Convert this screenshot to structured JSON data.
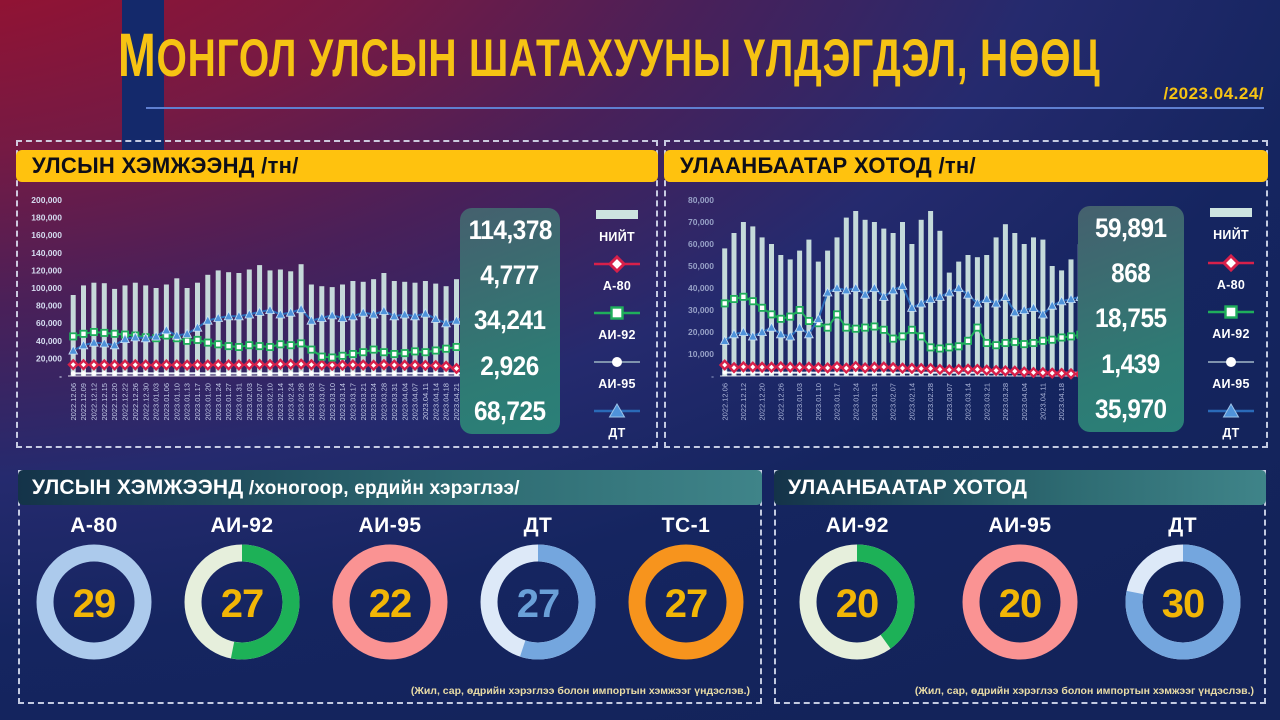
{
  "header": {
    "title": "МОНГОЛ УЛСЫН ШАТАХУУНЫ ҮЛДЭГДЭЛ, НӨӨЦ",
    "date": "/2023.04.24/"
  },
  "colors": {
    "gold": "#f6c313",
    "header_yellow": "#ffc20e",
    "navy": "#14296b",
    "bar_mint": "#cde4e0",
    "red": "#d7204a",
    "green": "#1fae5b",
    "pale": "#e9eef8",
    "blue": "#2a6ab8",
    "blue_marker": "#4f93da",
    "salmon": "#fa9393",
    "orange": "#f7941d",
    "light_blue_ring": "#accaec",
    "pale_mint": "#e6efdc",
    "pale_blue": "#dde9f8",
    "mid_blue": "#74a6de"
  },
  "legend_labels": [
    "НИЙТ",
    "А-80",
    "АИ-92",
    "АИ-95",
    "ДТ"
  ],
  "chart_data": [
    {
      "type": "bar",
      "title": "УЛСЫН ХЭМЖЭЭНД /тн/",
      "ylim": [
        0,
        200000
      ],
      "label_every": 1,
      "yticks": [
        {
          "v": 200000,
          "label": "200,000"
        },
        {
          "v": 180000,
          "label": "180,000"
        },
        {
          "v": 160000,
          "label": "160,000"
        },
        {
          "v": 140000,
          "label": "140,000"
        },
        {
          "v": 120000,
          "label": "120,000"
        },
        {
          "v": 100000,
          "label": "100,000"
        },
        {
          "v": 80000,
          "label": "80,000"
        },
        {
          "v": 60000,
          "label": "60,000"
        },
        {
          "v": 40000,
          "label": "40,000"
        },
        {
          "v": 20000,
          "label": "20,000"
        },
        {
          "v": 0,
          "label": "-"
        }
      ],
      "x": [
        "2022.12.06",
        "2022.12.09",
        "2022.12.12",
        "2022.12.15",
        "2022.12.20",
        "2022.12.22",
        "2022.12.26",
        "2022.12.30",
        "2023.01.03",
        "2023.01.06",
        "2023.01.10",
        "2023.01.13",
        "2023.01.17",
        "2023.01.20",
        "2023.01.24",
        "2023.01.27",
        "2023.01.31",
        "2023.02.03",
        "2023.02.07",
        "2023.02.10",
        "2023.02.14",
        "2023.02.24",
        "2023.02.28",
        "2023.03.03",
        "2023.03.07",
        "2023.03.10",
        "2023.03.14",
        "2023.03.17",
        "2023.03.21",
        "2023.03.24",
        "2023.03.28",
        "2023.03.31",
        "2023.04.04",
        "2023.04.07",
        "2023.04.11",
        "2023.04.14",
        "2023.04.18",
        "2023.04.21",
        "2023.04.24"
      ],
      "series": [
        {
          "name": "НИЙТ",
          "kind": "bar",
          "color": "#cde4e0",
          "values": [
            92000,
            103000,
            106000,
            105500,
            99000,
            103000,
            106000,
            103000,
            100000,
            104000,
            111000,
            100000,
            106000,
            115000,
            120000,
            118000,
            117000,
            121000,
            126000,
            120000,
            121000,
            119000,
            127000,
            104000,
            102000,
            101000,
            104000,
            108000,
            107000,
            110000,
            117000,
            108000,
            107000,
            106000,
            108000,
            105000,
            102000,
            110000,
            114378
          ]
        },
        {
          "name": "А-80",
          "kind": "line",
          "color": "#d7204a",
          "marker": "diamond",
          "values": [
            13000,
            12800,
            12600,
            12700,
            12500,
            12600,
            12700,
            12500,
            12400,
            12600,
            12500,
            12400,
            12600,
            12500,
            12700,
            12600,
            12500,
            12800,
            13200,
            13000,
            13400,
            13300,
            13500,
            12800,
            12500,
            12300,
            12400,
            12600,
            12500,
            12200,
            12800,
            12500,
            12300,
            12400,
            12100,
            11800,
            11000,
            8500,
            4777
          ]
        },
        {
          "name": "АИ-92",
          "kind": "line",
          "color": "#1fae5b",
          "marker": "square",
          "values": [
            45000,
            48000,
            50000,
            49000,
            48000,
            47000,
            46000,
            44000,
            43000,
            46000,
            43000,
            40000,
            41000,
            38000,
            36000,
            34000,
            33000,
            35000,
            34000,
            33000,
            36000,
            35000,
            37000,
            30000,
            22000,
            21000,
            23000,
            25000,
            27000,
            30000,
            27000,
            25000,
            26000,
            28000,
            27000,
            29000,
            31000,
            33000,
            34241
          ]
        },
        {
          "name": "АИ-95",
          "kind": "line",
          "color": "#e9eef8",
          "marker": "circle",
          "values": [
            3000,
            2950,
            3000,
            3050,
            3000,
            2950,
            3000,
            3050,
            2950,
            3000,
            2950,
            3000,
            3050,
            3000,
            2950,
            3000,
            2950,
            3000,
            3050,
            3000,
            2950,
            2950,
            3000,
            3050,
            2950,
            3000,
            2950,
            3000,
            3050,
            3000,
            2950,
            2950,
            3000,
            3050,
            2950,
            2950,
            3000,
            2950,
            2926
          ]
        },
        {
          "name": "ДТ",
          "kind": "line",
          "color": "#2a6ab8",
          "marker": "triangle",
          "values": [
            29000,
            35000,
            38000,
            37000,
            35000,
            42000,
            44000,
            43000,
            45000,
            52000,
            46000,
            48000,
            55000,
            63000,
            66000,
            68000,
            68000,
            70000,
            73000,
            75000,
            70000,
            72000,
            76000,
            63000,
            66000,
            69000,
            66000,
            68000,
            72000,
            70000,
            74000,
            68000,
            70000,
            68000,
            71000,
            65000,
            60000,
            63000,
            68725
          ]
        }
      ],
      "totals": [
        "114,378",
        "4,777",
        "34,241",
        "2,926",
        "68,725"
      ]
    },
    {
      "type": "bar",
      "title": "УЛААНБААТАР ХОТОД /тн/",
      "ylim": [
        0,
        80000
      ],
      "label_every": 2,
      "yticks": [
        {
          "v": 80000,
          "label": "80,000"
        },
        {
          "v": 70000,
          "label": "70,000"
        },
        {
          "v": 60000,
          "label": "60,000"
        },
        {
          "v": 50000,
          "label": "50,000"
        },
        {
          "v": 40000,
          "label": "40,000"
        },
        {
          "v": 30000,
          "label": "30,000"
        },
        {
          "v": 20000,
          "label": "20,000"
        },
        {
          "v": 10000,
          "label": "10,000"
        },
        {
          "v": 0,
          "label": "-"
        }
      ],
      "x": [
        "2022.12.06",
        "2022.12.09",
        "2022.12.12",
        "2022.12.15",
        "2022.12.20",
        "2022.12.22",
        "2022.12.26",
        "2022.12.30",
        "2023.01.03",
        "2023.01.06",
        "2023.01.10",
        "2023.01.13",
        "2023.01.17",
        "2023.01.20",
        "2023.01.24",
        "2023.01.27",
        "2023.01.31",
        "2023.02.03",
        "2023.02.07",
        "2023.02.10",
        "2023.02.14",
        "2023.02.24",
        "2023.02.28",
        "2023.03.03",
        "2023.03.07",
        "2023.03.10",
        "2023.03.14",
        "2023.03.17",
        "2023.03.21",
        "2023.03.24",
        "2023.03.28",
        "2023.03.31",
        "2023.04.04",
        "2023.04.07",
        "2023.04.11",
        "2023.04.14",
        "2023.04.18",
        "2023.04.21",
        "2023.04.24"
      ],
      "series": [
        {
          "name": "НИЙТ",
          "kind": "bar",
          "color": "#cde4e0",
          "values": [
            58000,
            65000,
            70000,
            68000,
            63000,
            60000,
            55000,
            53000,
            57000,
            62000,
            52000,
            57000,
            63000,
            72000,
            75000,
            71000,
            70000,
            67000,
            65000,
            70000,
            60000,
            71000,
            75000,
            66000,
            47000,
            52000,
            55000,
            54000,
            55000,
            63000,
            69000,
            65000,
            60000,
            63000,
            62000,
            50000,
            48000,
            53000,
            59891
          ]
        },
        {
          "name": "А-80",
          "kind": "line",
          "color": "#d7204a",
          "marker": "diamond",
          "values": [
            5000,
            3800,
            4200,
            4100,
            4000,
            4000,
            4200,
            4000,
            3900,
            4000,
            3800,
            3700,
            4200,
            3600,
            4300,
            3700,
            4000,
            4100,
            3800,
            3600,
            3500,
            3400,
            3400,
            3000,
            2800,
            3000,
            3100,
            3000,
            2700,
            2500,
            2300,
            2200,
            1800,
            1600,
            1500,
            1300,
            1200,
            1000,
            868
          ]
        },
        {
          "name": "АИ-92",
          "kind": "line",
          "color": "#1fae5b",
          "marker": "square",
          "values": [
            33000,
            35000,
            36000,
            34000,
            31000,
            28000,
            26000,
            27000,
            30000,
            25000,
            24000,
            22000,
            28000,
            22000,
            21500,
            22000,
            22500,
            21000,
            17000,
            18000,
            21000,
            18000,
            13000,
            12500,
            13000,
            13500,
            16000,
            22000,
            15000,
            14000,
            15000,
            15500,
            14500,
            15000,
            16000,
            16500,
            17500,
            18000,
            18755
          ]
        },
        {
          "name": "АИ-95",
          "kind": "line",
          "color": "#e9eef8",
          "marker": "circle",
          "values": [
            1600,
            1550,
            1500,
            1550,
            1500,
            1550,
            1500,
            1550,
            1500,
            1550,
            1500,
            1550,
            1500,
            1550,
            1500,
            1550,
            1500,
            1550,
            1500,
            1550,
            1500,
            1550,
            1500,
            1550,
            1500,
            1550,
            1500,
            1550,
            1500,
            1550,
            1500,
            1550,
            1500,
            1550,
            1500,
            1550,
            1500,
            1450,
            1439
          ]
        },
        {
          "name": "ДТ",
          "kind": "line",
          "color": "#2a6ab8",
          "marker": "triangle",
          "values": [
            16000,
            19000,
            20000,
            18000,
            20000,
            22000,
            19000,
            18000,
            22000,
            19000,
            26000,
            38000,
            40000,
            39000,
            40000,
            37000,
            40000,
            36000,
            39000,
            41000,
            31000,
            33000,
            35000,
            36000,
            38000,
            40000,
            37000,
            33000,
            35000,
            33000,
            36000,
            29000,
            30000,
            31000,
            28000,
            32000,
            34000,
            35000,
            35970
          ]
        }
      ],
      "totals": [
        "59,891",
        "868",
        "18,755",
        "1,439",
        "35,970"
      ]
    },
    {
      "type": "pie",
      "title": "УЛСЫН ХЭМЖЭЭНД",
      "subtitle": "/хоногоор, ердийн хэрэглээ/",
      "note": "(Жил, сар, өдрийн хэрэглээ болон импортын хэмжээг үндэслэв.)",
      "donuts": [
        {
          "id": "a80",
          "label": "А-80",
          "value": 29,
          "pct": 100,
          "seg": "#accaec",
          "rest": "#accaec",
          "num_color": "#f2b606"
        },
        {
          "id": "ai92",
          "label": "АИ-92",
          "value": 27,
          "pct": 53,
          "seg": "#1db157",
          "rest": "#e6efdc",
          "num_color": "#f2b606"
        },
        {
          "id": "ai95",
          "label": "АИ-95",
          "value": 22,
          "pct": 100,
          "seg": "#fa9393",
          "rest": "#fa9393",
          "num_color": "#f2b606"
        },
        {
          "id": "dt",
          "label": "ДТ",
          "value": 27,
          "pct": 55,
          "seg": "#74a6de",
          "rest": "#dde9f8",
          "num_color": "#6aa0d8"
        },
        {
          "id": "tc1",
          "label": "ТС-1",
          "value": 27,
          "pct": 100,
          "seg": "#f7941d",
          "rest": "#f7941d",
          "num_color": "#f2b606"
        }
      ]
    },
    {
      "type": "pie",
      "title": "УЛААНБААТАР ХОТОД",
      "subtitle": "",
      "note": "(Жил, сар, өдрийн хэрэглээ болон импортын хэмжээг үндэслэв.)",
      "donuts": [
        {
          "id": "ai92",
          "label": "АИ-92",
          "value": 20,
          "pct": 40,
          "seg": "#1db157",
          "rest": "#e6efdc",
          "num_color": "#f2b606"
        },
        {
          "id": "ai95",
          "label": "АИ-95",
          "value": 20,
          "pct": 100,
          "seg": "#fa9393",
          "rest": "#fa9393",
          "num_color": "#f2b606"
        },
        {
          "id": "dt",
          "label": "ДТ",
          "value": 30,
          "pct": 78,
          "seg": "#74a6de",
          "rest": "#dde9f8",
          "num_color": "#f2b606"
        }
      ]
    }
  ]
}
